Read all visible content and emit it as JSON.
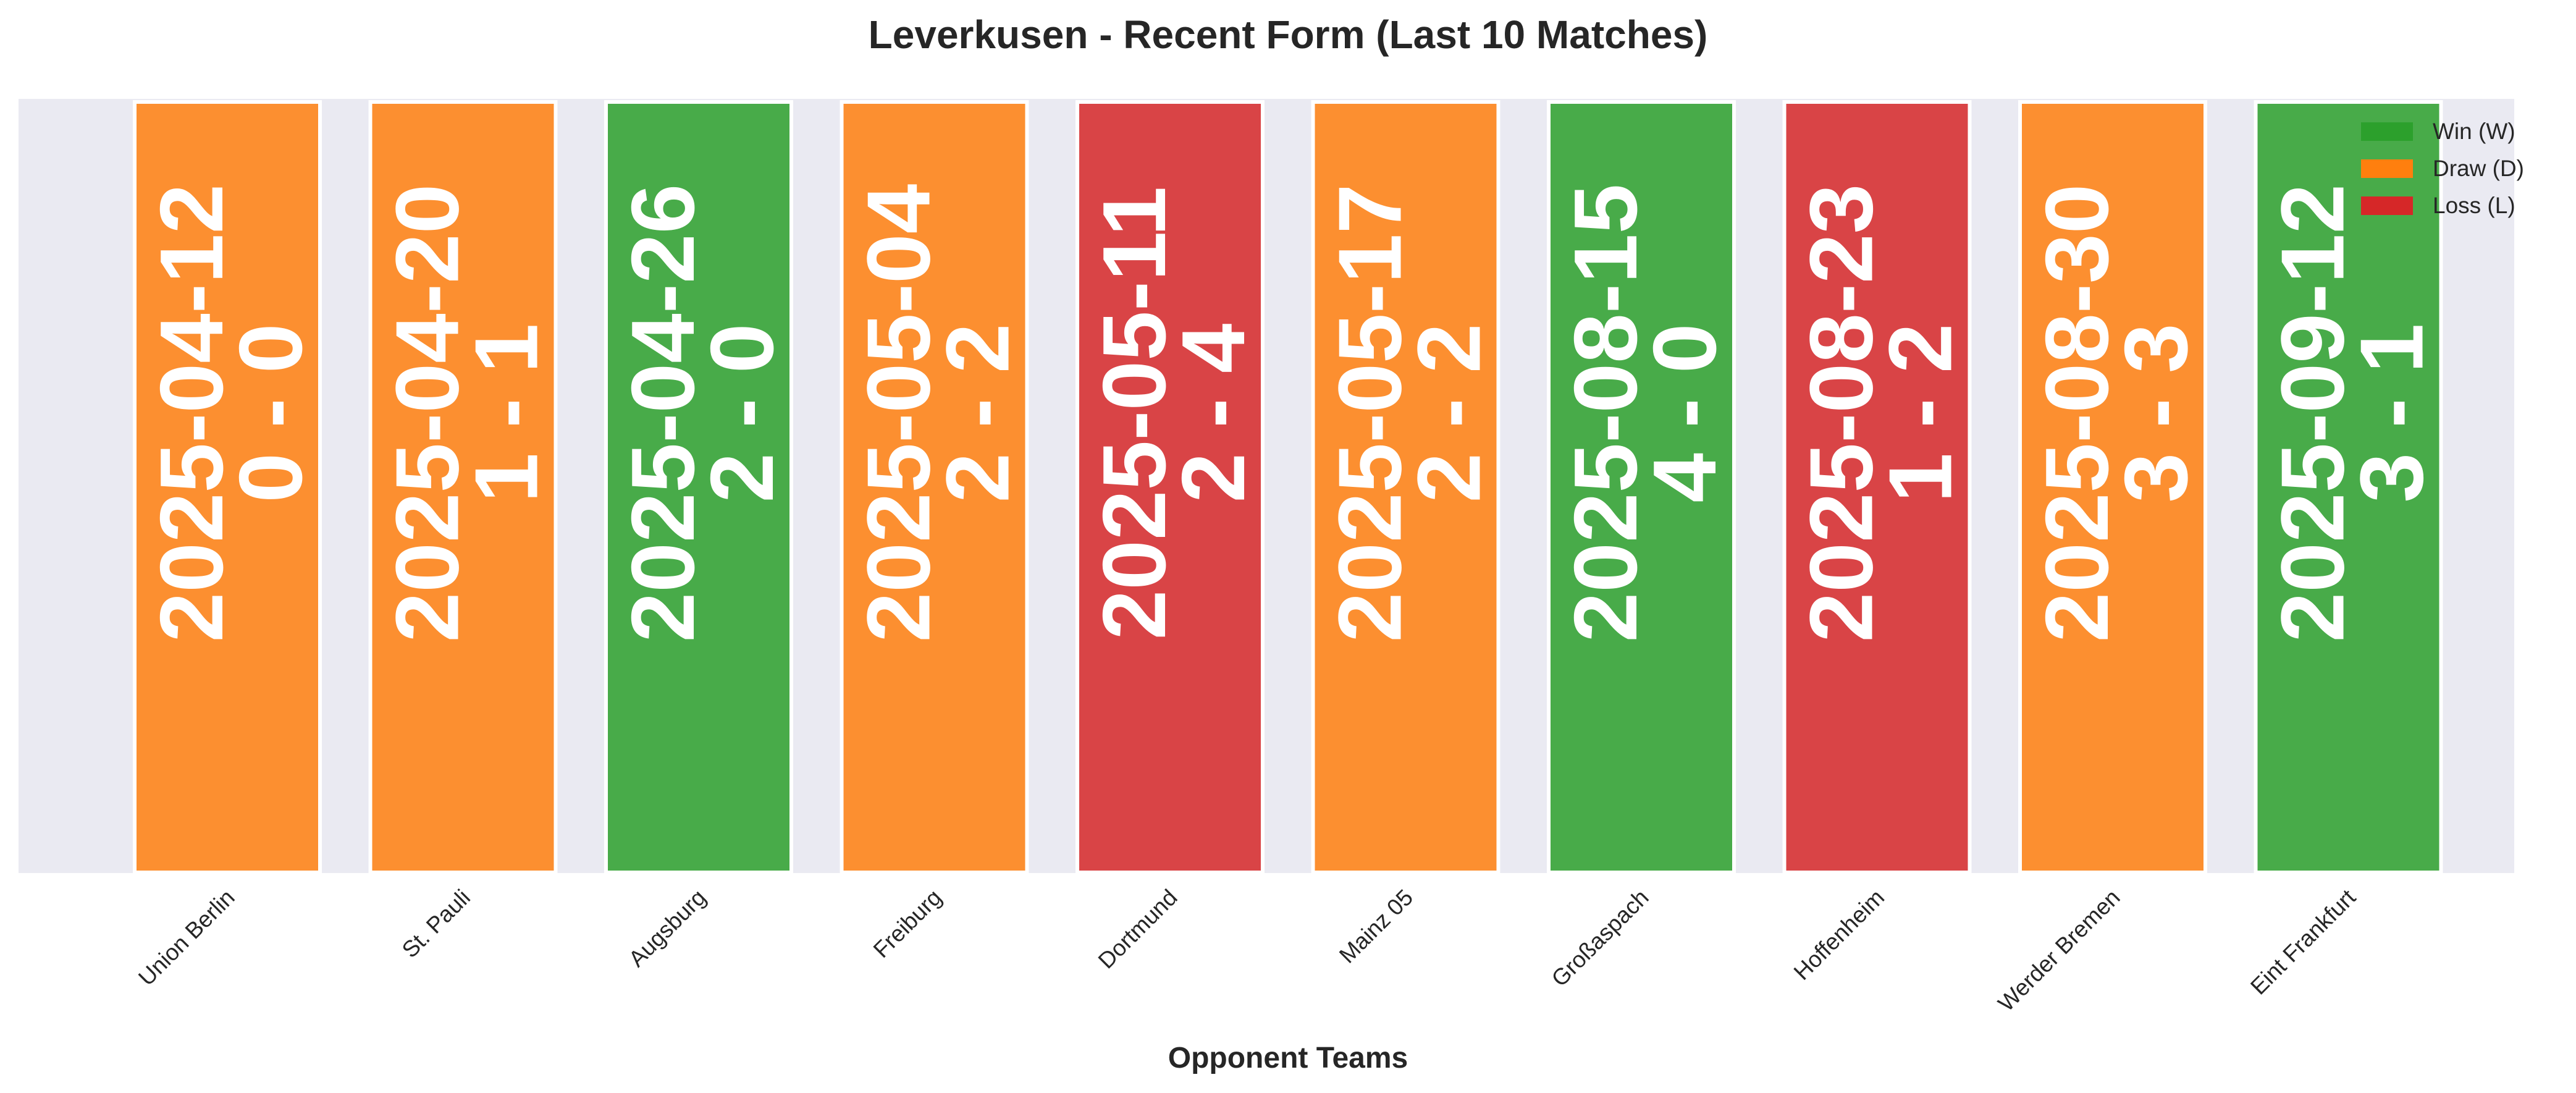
{
  "chart_data": {
    "type": "bar",
    "title": "Leverkusen - Recent Form (Last 10 Matches)",
    "xlabel": "Opponent Teams",
    "ylabel": "",
    "grid": false,
    "legend_position": "top-right",
    "categories": [
      "Union Berlin",
      "St. Pauli",
      "Augsburg",
      "Freiburg",
      "Dortmund",
      "Mainz 05",
      "Großaspach",
      "Hoffenheim",
      "Werder Bremen",
      "Eint Frankfurt"
    ],
    "matches": [
      {
        "opponent": "Union Berlin",
        "date": "2025-04-12",
        "score": "0 - 0",
        "result": "D"
      },
      {
        "opponent": "St. Pauli",
        "date": "2025-04-20",
        "score": "1 - 1",
        "result": "D"
      },
      {
        "opponent": "Augsburg",
        "date": "2025-04-26",
        "score": "2 - 0",
        "result": "W"
      },
      {
        "opponent": "Freiburg",
        "date": "2025-05-04",
        "score": "2 - 2",
        "result": "D"
      },
      {
        "opponent": "Dortmund",
        "date": "2025-05-11",
        "score": "2 - 4",
        "result": "L"
      },
      {
        "opponent": "Mainz 05",
        "date": "2025-05-17",
        "score": "2 - 2",
        "result": "D"
      },
      {
        "opponent": "Großaspach",
        "date": "2025-08-15",
        "score": "4 - 0",
        "result": "W"
      },
      {
        "opponent": "Hoffenheim",
        "date": "2025-08-23",
        "score": "1 - 2",
        "result": "L"
      },
      {
        "opponent": "Werder Bremen",
        "date": "2025-08-30",
        "score": "3 - 3",
        "result": "D"
      },
      {
        "opponent": "Eint Frankfurt",
        "date": "2025-09-12",
        "score": "3 - 1",
        "result": "W"
      }
    ],
    "legend": [
      {
        "key": "W",
        "label": "Win (W)"
      },
      {
        "key": "D",
        "label": "Draw (D)"
      },
      {
        "key": "L",
        "label": "Loss (L)"
      }
    ],
    "colors": {
      "W": "#2ca02c",
      "D": "#ff7f0e",
      "L": "#d62728",
      "background": "#eaeaf2"
    }
  }
}
